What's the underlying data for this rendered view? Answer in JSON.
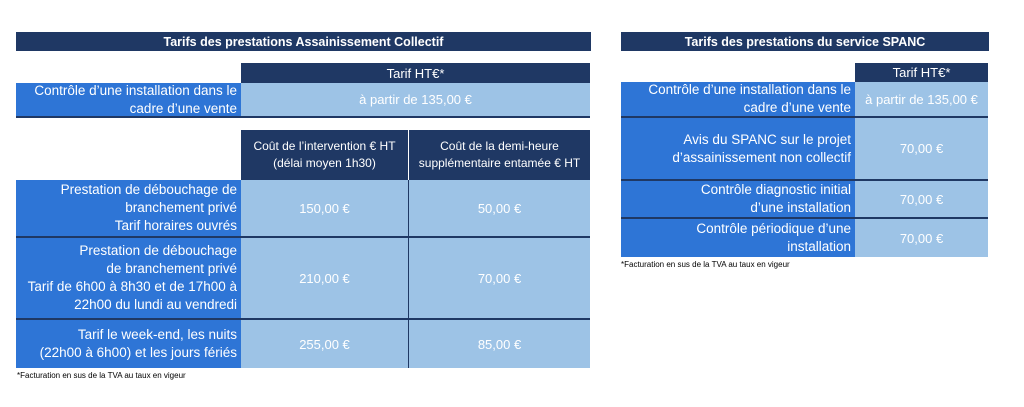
{
  "left": {
    "title": "Tarifs des prestations Assainissement Collectif",
    "tarif_header": "Tarif HT€*",
    "controle_label": "Contrôle d’une installation dans le\ncadre d’une vente",
    "controle_value": "à partir de 135,00 €",
    "col1_header": "Coût de l’intervention € HT\n(délai moyen 1h30)",
    "col2_header": "Coût de la demi-heure\nsupplémentaire entamée € HT",
    "rows": [
      {
        "label": "Prestation de débouchage de\nbranchement privé\nTarif horaires ouvrés",
        "cost": "150,00 €",
        "extra": "50,00 €"
      },
      {
        "label": "Prestation de débouchage\nde branchement privé\nTarif de 6h00 à 8h30 et de 17h00 à\n22h00  du lundi au vendredi",
        "cost": "210,00 €",
        "extra": "70,00 €"
      },
      {
        "label": "Tarif le week-end, les nuits\n(22h00 à 6h00) et les jours fériés",
        "cost": "255,00 €",
        "extra": "85,00 €"
      }
    ],
    "footnote": "*Facturation en sus de la TVA au taux en vigeur"
  },
  "right": {
    "title": "Tarifs des prestations du service SPANC",
    "tarif_header": "Tarif HT€*",
    "rows": [
      {
        "label": "Contrôle d’une installation dans le\ncadre d’une vente",
        "value": "à partir de 135,00 €"
      },
      {
        "label": "Avis du SPANC sur le projet\nd’assainissement non collectif",
        "value": "70,00 €"
      },
      {
        "label": "Contrôle diagnostic initial\nd’une installation",
        "value": "70,00 €"
      },
      {
        "label": "Contrôle périodique d’une\ninstallation",
        "value": "70,00 €"
      }
    ],
    "footnote": "*Facturation en sus de la TVA au taux en vigeur"
  }
}
